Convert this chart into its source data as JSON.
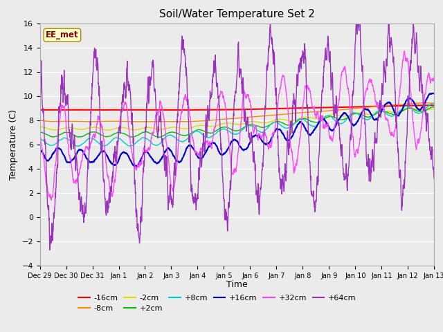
{
  "title": "Soil/Water Temperature Set 2",
  "xlabel": "Time",
  "ylabel": "Temperature (C)",
  "ylim": [
    -4,
    16
  ],
  "yticks": [
    -4,
    -2,
    0,
    2,
    4,
    6,
    8,
    10,
    12,
    14,
    16
  ],
  "xtick_labels": [
    "Dec 29",
    "Dec 30",
    "Dec 31",
    "Jan 1",
    "Jan 2",
    "Jan 3",
    "Jan 4",
    "Jan 5",
    "Jan 6",
    "Jan 7",
    "Jan 8",
    "Jan 9",
    "Jan 10",
    "Jan 11",
    "Jan 12",
    "Jan 13"
  ],
  "annotation_text": "EE_met",
  "annotation_color": "#8B0000",
  "annotation_bg": "#FFFFCC",
  "bg_color": "#EBEBEB",
  "series_labels": [
    "-16cm",
    "-8cm",
    "-2cm",
    "+2cm",
    "+8cm",
    "+16cm",
    "+32cm",
    "+64cm"
  ],
  "series_colors": [
    "#FF0000",
    "#FF8800",
    "#DDDD00",
    "#00BB00",
    "#00CCCC",
    "#0000CC",
    "#FF44FF",
    "#9933BB"
  ],
  "n_points": 2000,
  "seed": 42
}
